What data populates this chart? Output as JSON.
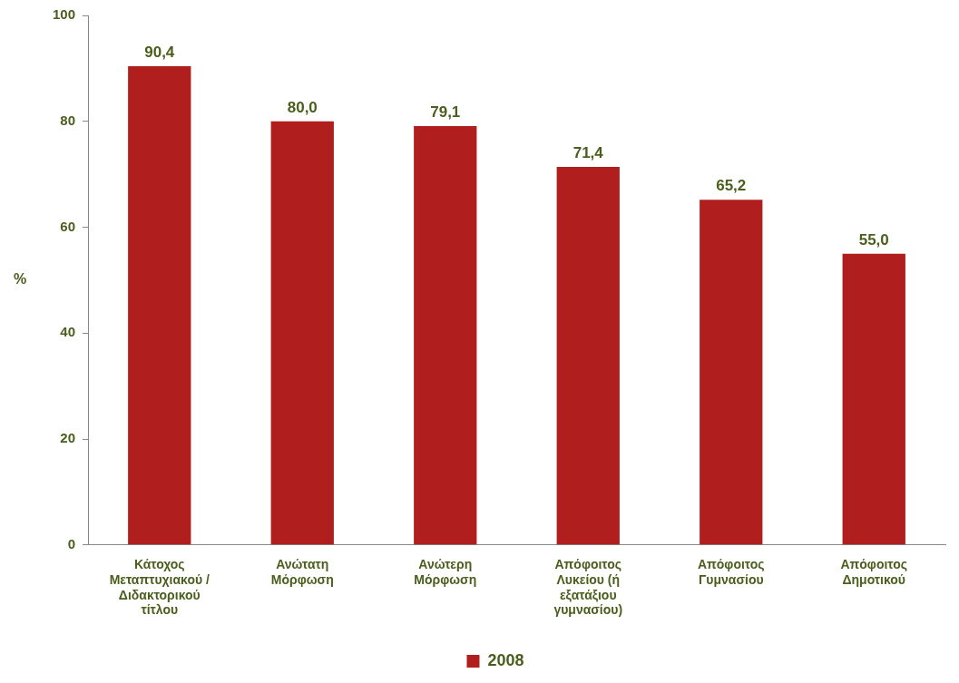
{
  "chart_data": {
    "type": "bar",
    "ylabel": "%",
    "categories": [
      "Κάτοχος Μεταπτυχιακού / Διδακτορικού τίτλου",
      "Ανώτατη Μόρφωση",
      "Ανώτερη Μόρφωση",
      "Απόφοιτος Λυκείου (ή εξατάξιου γυμνασίου)",
      "Απόφοιτος Γυμνασίου",
      "Απόφοιτος Δημοτικού"
    ],
    "series": [
      {
        "name": "2008",
        "color": "#b01e1e",
        "values": [
          90.4,
          80.0,
          79.1,
          71.4,
          65.2,
          55.0
        ],
        "value_labels": [
          "90,4",
          "80,0",
          "79,1",
          "71,4",
          "65,2",
          "55,0"
        ]
      }
    ],
    "ylim": [
      0,
      100
    ],
    "yticks": [
      0,
      20,
      40,
      60,
      80,
      100
    ],
    "grid": false,
    "legend": "bottom"
  }
}
